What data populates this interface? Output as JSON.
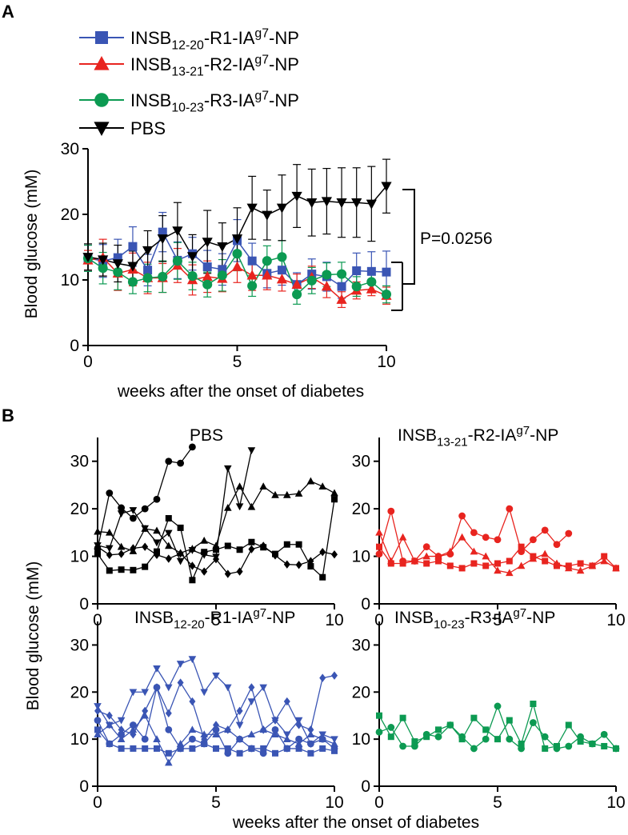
{
  "colors": {
    "blue": "#3a55b4",
    "red": "#e8241f",
    "green": "#0c9a52",
    "black": "#000000"
  },
  "figure": {
    "panel_a_label": "A",
    "panel_b_label": "B"
  },
  "chart_data": [
    {
      "type": "line",
      "panel": "A",
      "xlabel": "weeks after the onset of diabetes",
      "ylabel": "Blood glucose (mM)",
      "xlim": [
        0,
        10
      ],
      "ylim": [
        0,
        30
      ],
      "xticks": [
        0,
        5,
        10
      ],
      "yticks": [
        0,
        10,
        20,
        30
      ],
      "legend": [
        {
          "base": "INSB",
          "sub": "12-20",
          "mid": "-R1-IA",
          "sup": "g7",
          "tail": "-NP",
          "color": "blue",
          "marker": "square"
        },
        {
          "base": "INSB",
          "sub": "13-21",
          "mid": "-R2-IA",
          "sup": "g7",
          "tail": "-NP",
          "color": "red",
          "marker": "triangle-up"
        },
        {
          "base": "INSB",
          "sub": "10-23",
          "mid": "-R3-IA",
          "sup": "g7",
          "tail": "-NP",
          "color": "green",
          "marker": "circle"
        },
        {
          "base": "PBS",
          "sub": "",
          "mid": "",
          "sup": "",
          "tail": "",
          "color": "black",
          "marker": "triangle-down"
        }
      ],
      "annotation": "P=0.0256",
      "series": [
        {
          "name": "INSB12-20-R1-IAg7-NP",
          "color": "blue",
          "marker": "square",
          "x": [
            0,
            0.5,
            1,
            1.5,
            2,
            2.5,
            3,
            3.5,
            4,
            4.5,
            5,
            5.5,
            6,
            6.5,
            7,
            7.5,
            8,
            8.5,
            9,
            9.5,
            10
          ],
          "y": [
            13.3,
            12.9,
            13.4,
            15.1,
            11.5,
            17.3,
            13,
            14,
            12,
            11.6,
            16,
            12.9,
            11,
            11.5,
            9.3,
            10.9,
            10.5,
            9,
            11.4,
            11.3,
            11.2
          ],
          "err": [
            2,
            2.5,
            2.8,
            3,
            2.4,
            3,
            2.8,
            2.5,
            2.5,
            2.4,
            3.2,
            2.7,
            2.2,
            2.3,
            1.8,
            2.3,
            2.2,
            1.8,
            2.7,
            3,
            3.2
          ]
        },
        {
          "name": "INSB13-21-R2-IAg7-NP",
          "color": "red",
          "marker": "triangle-up",
          "x": [
            0,
            0.5,
            1,
            1.5,
            2,
            2.5,
            3,
            3.5,
            4,
            4.5,
            5,
            5.5,
            6,
            6.5,
            7,
            7.5,
            8,
            8.5,
            9,
            9.5,
            10
          ],
          "y": [
            13,
            13.4,
            11,
            11.6,
            10.3,
            10.3,
            12.2,
            10,
            10.5,
            10.2,
            12,
            10.7,
            10.7,
            10.1,
            9.3,
            10.4,
            9,
            7,
            8.4,
            8.6,
            7.6
          ],
          "err": [
            1.5,
            2.8,
            2.6,
            2.5,
            2.4,
            2.2,
            2.6,
            2.3,
            2.4,
            2,
            2.4,
            2.3,
            2.2,
            1.8,
            1.6,
            1.7,
            1.7,
            1.2,
            1.3,
            1,
            1.3
          ]
        },
        {
          "name": "INSB10-23-R3-IAg7-NP",
          "color": "green",
          "marker": "circle",
          "x": [
            0,
            0.5,
            1,
            1.5,
            2,
            2.5,
            3,
            3.5,
            4,
            4.5,
            5,
            5.5,
            6,
            6.5,
            7,
            7.5,
            8,
            8.5,
            9,
            9.5,
            10
          ],
          "y": [
            13.3,
            11.8,
            11.2,
            9.7,
            10.3,
            10.5,
            12.9,
            10.6,
            9.3,
            10.7,
            14,
            9.1,
            12.9,
            13.5,
            7.8,
            9.9,
            10.8,
            10.9,
            9,
            9.7,
            7.8
          ],
          "err": [
            2,
            2.4,
            2.7,
            1.8,
            2.1,
            2.4,
            2.8,
            2.1,
            1.9,
            2.4,
            2.6,
            1.6,
            2.3,
            2.5,
            1.5,
            2,
            1.8,
            1.8,
            1.5,
            1.6,
            1.3
          ]
        },
        {
          "name": "PBS",
          "color": "black",
          "marker": "triangle-down",
          "x": [
            0,
            0.5,
            1,
            1.5,
            2,
            2.5,
            3,
            3.5,
            4,
            4.5,
            5,
            5.5,
            6,
            6.5,
            7,
            7.5,
            8,
            8.5,
            9,
            9.5,
            10
          ],
          "y": [
            13.5,
            13.1,
            12.5,
            12.1,
            14.5,
            16.3,
            17.5,
            13.6,
            15.8,
            15.1,
            16.3,
            21,
            19.9,
            21,
            22.8,
            21.8,
            22,
            21.8,
            21.8,
            21.6,
            24.3
          ],
          "err": [
            2,
            2.5,
            2.8,
            2.3,
            3,
            3.5,
            4.3,
            3.3,
            4.8,
            3.6,
            4.7,
            4.8,
            3.8,
            5,
            4.8,
            5.1,
            5,
            5.3,
            5.3,
            5.7,
            4.1
          ]
        }
      ]
    },
    {
      "type": "line",
      "panel": "B-PBS",
      "title": "PBS",
      "color": "black",
      "xlim": [
        0,
        10
      ],
      "ylim": [
        0,
        35
      ],
      "xticks": [
        0,
        5,
        10
      ],
      "yticks": [
        0,
        10,
        20,
        30
      ],
      "series": [
        {
          "marker": "circle",
          "x": [
            0,
            0.5,
            1,
            1.5,
            2,
            2.5,
            3,
            3.5,
            4
          ],
          "y": [
            11.6,
            23.3,
            20.2,
            18,
            20,
            22,
            30,
            29.6,
            33
          ]
        },
        {
          "marker": "square",
          "x": [
            0,
            0.5,
            1,
            1.5,
            2,
            2.5,
            3,
            3.5,
            4,
            4.5,
            5,
            5.5,
            6,
            6.5,
            7,
            7.5,
            8,
            8.5,
            9,
            9.5,
            10
          ],
          "y": [
            10.5,
            7,
            7.2,
            7.1,
            7.8,
            11,
            18,
            16,
            5,
            10.9,
            11.4,
            12.2,
            11.4,
            13,
            11.9,
            10.5,
            12.5,
            12.5,
            7.9,
            5.6,
            22
          ]
        },
        {
          "marker": "triangle-down",
          "x": [
            0,
            0.5,
            1,
            1.5,
            2,
            2.5,
            3,
            3.5,
            4,
            4.5,
            5,
            5.5,
            6,
            6.5
          ],
          "y": [
            12.3,
            11.7,
            19,
            19.7,
            15.9,
            12.9,
            14.9,
            9,
            11.3,
            10.3,
            9.9,
            28.5,
            20.5,
            32.3
          ]
        },
        {
          "marker": "triangle-up",
          "x": [
            0,
            0.5,
            1,
            1.5,
            2,
            2.5,
            3,
            3.5,
            4,
            4.5,
            5,
            5.5,
            6,
            6.5,
            7,
            7.5,
            8,
            8.5,
            9,
            9.5,
            10
          ],
          "y": [
            15.2,
            15,
            12,
            11.1,
            15.8,
            15.4,
            12.2,
            10.7,
            11.6,
            13.3,
            12.2,
            20.2,
            24.7,
            20.4,
            24.7,
            22.9,
            22.9,
            23.2,
            25.8,
            24.7,
            23.3
          ]
        },
        {
          "marker": "diamond",
          "x": [
            0,
            0.5,
            1,
            1.5,
            2,
            2.5,
            3,
            3.5,
            4,
            4.5,
            5,
            5.5,
            6,
            6.5,
            7,
            7.5,
            8,
            8.5,
            9,
            9.5,
            10
          ],
          "y": [
            12,
            10.3,
            10.5,
            11.7,
            12,
            10.3,
            9.5,
            10.6,
            8,
            6.8,
            9.4,
            6.3,
            6.8,
            11.5,
            12.2,
            10.2,
            8.3,
            8.2,
            9,
            10.9,
            10.4
          ]
        }
      ]
    },
    {
      "type": "line",
      "panel": "B-R2",
      "title": {
        "base": "INSB",
        "sub": "13-21",
        "mid": "-R2-IA",
        "sup": "g7",
        "tail": "-NP"
      },
      "color": "red",
      "xlim": [
        0,
        10
      ],
      "ylim": [
        0,
        35
      ],
      "xticks": [
        0,
        5,
        10
      ],
      "yticks": [
        0,
        10,
        20,
        30
      ],
      "series": [
        {
          "marker": "circle",
          "x": [
            0,
            0.5,
            1,
            1.5,
            2,
            2.5,
            3,
            3.5,
            4,
            4.5,
            5,
            5.5,
            6,
            6.5,
            7,
            7.5,
            8
          ],
          "y": [
            10.5,
            19.5,
            9,
            9,
            12,
            10,
            10.5,
            18.5,
            15,
            14,
            13.5,
            20,
            11,
            13.5,
            15.5,
            12.5,
            14.8
          ]
        },
        {
          "marker": "triangle-up",
          "x": [
            0,
            0.5,
            1,
            1.5,
            2,
            2.5,
            3,
            3.5,
            4,
            4.5,
            5,
            5.5,
            6,
            6.5,
            7,
            7.5,
            8,
            8.5,
            9,
            9.5,
            10
          ],
          "y": [
            15,
            9,
            14,
            9,
            10,
            10,
            11,
            14,
            11,
            10,
            7,
            6.5,
            8,
            9.5,
            10.5,
            8.5,
            7.5,
            7,
            8,
            9,
            7.5
          ]
        },
        {
          "marker": "square",
          "x": [
            0,
            0.5,
            1,
            1.5,
            2,
            2.5,
            3,
            3.5,
            4,
            4.5,
            5,
            5.5,
            6,
            6.5,
            7,
            7.5,
            8,
            8.5,
            9,
            9.5,
            10
          ],
          "y": [
            12,
            8.5,
            8.5,
            9,
            8.5,
            9,
            8,
            7.5,
            8.5,
            8,
            8.5,
            9,
            12,
            10,
            9,
            8,
            8,
            8.5,
            8,
            10,
            7.5
          ]
        }
      ]
    },
    {
      "type": "line",
      "panel": "B-R1",
      "title": {
        "base": "INSB",
        "sub": "12-20",
        "mid": "-R1-IA",
        "sup": "g7",
        "tail": "-NP"
      },
      "color": "blue",
      "xlim": [
        0,
        10
      ],
      "ylim": [
        0,
        35
      ],
      "xticks": [
        0,
        5,
        10
      ],
      "yticks": [
        0,
        10,
        20,
        30
      ],
      "series": [
        {
          "marker": "triangle-down",
          "x": [
            0,
            0.5,
            1,
            1.5,
            2,
            2.5,
            3,
            3.5,
            4,
            4.5,
            5,
            5.5,
            6,
            6.5,
            7,
            7.5,
            8,
            8.5,
            9,
            9.5,
            10
          ],
          "y": [
            17,
            13,
            14,
            20,
            20,
            25,
            21,
            26,
            27,
            20,
            23.5,
            21,
            13,
            18,
            21,
            14,
            11,
            14,
            9,
            11,
            10
          ]
        },
        {
          "marker": "diamond",
          "x": [
            0,
            0.5,
            1,
            1.5,
            2,
            2.5,
            3,
            3.5,
            4,
            4.5,
            5,
            5.5,
            6,
            6.5,
            7,
            7.5,
            8,
            8.5,
            9,
            9.5,
            10
          ],
          "y": [
            16,
            15,
            12,
            11,
            16,
            21,
            15.5,
            22,
            18,
            10,
            13,
            12,
            16,
            21,
            12,
            14,
            18,
            13,
            12,
            23,
            23.5
          ]
        },
        {
          "marker": "circle",
          "x": [
            0,
            0.5,
            1,
            1.5,
            2,
            2.5,
            3,
            3.5,
            4,
            4.5,
            5,
            5.5,
            6,
            6.5,
            7,
            7.5,
            8,
            8.5,
            9,
            9.5,
            10
          ],
          "y": [
            14,
            9,
            11,
            13,
            10,
            21,
            12,
            8,
            10,
            9,
            12,
            7,
            10,
            8,
            7,
            12,
            8,
            10,
            9,
            10,
            8
          ]
        },
        {
          "marker": "triangle-up",
          "x": [
            0,
            0.5,
            1,
            1.5,
            2,
            2.5,
            3,
            3.5,
            4,
            4.5,
            5,
            5.5,
            6,
            6.5,
            7,
            7.5,
            8,
            8.5,
            9,
            9.5,
            10
          ],
          "y": [
            11,
            13,
            10,
            12,
            15,
            10,
            5,
            9,
            12,
            11,
            11,
            12,
            10,
            11,
            12,
            11,
            10,
            9,
            11,
            10,
            9
          ]
        },
        {
          "marker": "square",
          "x": [
            0,
            0.5,
            1,
            1.5,
            2,
            2.5,
            3,
            3.5,
            4,
            4.5,
            5,
            5.5,
            6,
            6.5,
            7,
            7.5,
            8,
            8.5,
            9,
            9.5,
            10
          ],
          "y": [
            12,
            9,
            8,
            8,
            8,
            8,
            7,
            8,
            8,
            9,
            8,
            8,
            7,
            8,
            8,
            7,
            8,
            8,
            7,
            8,
            7.5
          ]
        }
      ]
    },
    {
      "type": "line",
      "panel": "B-R3",
      "title": {
        "base": "INSB",
        "sub": "10-23",
        "mid": "-R3-IA",
        "sup": "g7",
        "tail": "-NP"
      },
      "color": "green",
      "xlim": [
        0,
        10
      ],
      "ylim": [
        0,
        35
      ],
      "xticks": [
        0,
        5,
        10
      ],
      "yticks": [
        0,
        10,
        20,
        30
      ],
      "series": [
        {
          "marker": "square",
          "x": [
            0,
            0.5,
            1,
            1.5,
            2,
            2.5,
            3,
            3.5,
            4,
            4.5,
            5,
            5.5,
            6,
            6.5,
            7,
            7.5,
            8,
            8.5,
            9,
            9.5,
            10
          ],
          "y": [
            15,
            10.5,
            14.5,
            9.5,
            10.5,
            12,
            13,
            10,
            14.5,
            12,
            10,
            14,
            9,
            17.5,
            8,
            8.5,
            13,
            9.5,
            9,
            8.5,
            8
          ]
        },
        {
          "marker": "circle",
          "x": [
            0,
            0.5,
            1,
            1.5,
            2,
            2.5,
            3,
            3.5,
            4,
            4.5,
            5,
            5.5,
            6,
            6.5,
            7,
            7.5,
            8,
            8.5,
            9,
            9.5,
            10
          ],
          "y": [
            11.5,
            12.5,
            8.5,
            8.5,
            11,
            10.5,
            13,
            10.5,
            8,
            10,
            17,
            10,
            8,
            13.5,
            10.5,
            8,
            8.5,
            10.5,
            9,
            11,
            8
          ]
        }
      ]
    }
  ],
  "panel_b_common": {
    "ylabel": "Blood glucose (mM)",
    "xlabel": "weeks after the onset of diabetes"
  }
}
